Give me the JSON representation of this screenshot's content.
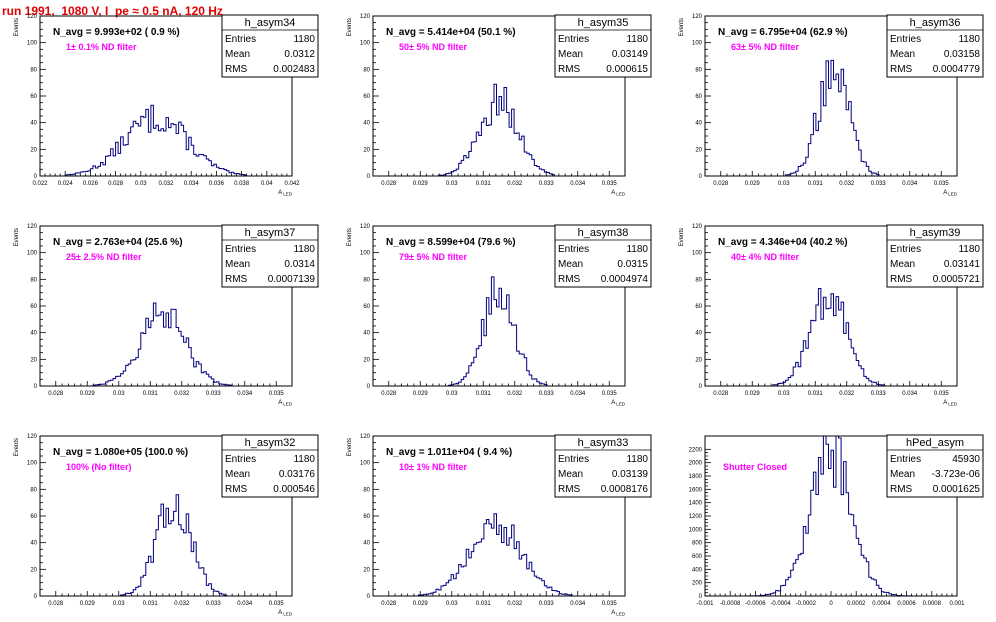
{
  "canvas_title": "run 1991,  1080 V, I_pe ≈ 0.5 nA, 120 Hz",
  "colors": {
    "histogram": "#000080",
    "title": "#e00000",
    "filter_label": "#ff00ff"
  },
  "stat_labels": {
    "entries": "Entries",
    "mean": "Mean",
    "rms": "RMS"
  },
  "chart_data": [
    {
      "type": "bar",
      "name": "h_asym34",
      "annotation": "N_avg = 9.993e+02 ( 0.9 %)",
      "filter": "1± 0.1% ND filter",
      "stats": {
        "entries": "1180",
        "mean": "0.0312",
        "rms": "0.002483"
      },
      "ylabel": "Events",
      "xlabel": "A_LED",
      "xlim": [
        0.022,
        0.042
      ],
      "ylim": [
        0,
        120
      ],
      "xticks": [
        "0.022",
        "0.024",
        "0.026",
        "0.028",
        "0.03",
        "0.032",
        "0.034",
        "0.036",
        "0.038",
        "0.04",
        "0.042"
      ],
      "yticks": [
        "0",
        "20",
        "40",
        "60",
        "80",
        "100",
        "120"
      ],
      "mean": 0.0312,
      "sigma": 0.0025,
      "peak": 45,
      "entries": 1180
    },
    {
      "type": "bar",
      "name": "h_asym35",
      "annotation": "N_avg = 5.414e+04 (50.1 %)",
      "filter": "50± 5% ND filter",
      "stats": {
        "entries": "1180",
        "mean": "0.03149",
        "rms": "0.000615"
      },
      "ylabel": "Events",
      "xlabel": "A_LED",
      "xlim": [
        0.0275,
        0.0355
      ],
      "ylim": [
        0,
        120
      ],
      "xticks": [
        "0.028",
        "0.029",
        "0.03",
        "0.031",
        "0.032",
        "0.033",
        "0.034",
        "0.035"
      ],
      "yticks": [
        "0",
        "20",
        "40",
        "60",
        "80",
        "100",
        "120"
      ],
      "mean": 0.03149,
      "sigma": 0.000615,
      "peak": 58,
      "entries": 1180
    },
    {
      "type": "bar",
      "name": "h_asym36",
      "annotation": "N_avg = 6.795e+04 (62.9 %)",
      "filter": "63± 5% ND filter",
      "stats": {
        "entries": "1180",
        "mean": "0.03158",
        "rms": "0.0004779"
      },
      "ylabel": "Events",
      "xlabel": "A_LED",
      "xlim": [
        0.0275,
        0.0355
      ],
      "ylim": [
        0,
        120
      ],
      "xticks": [
        "0.028",
        "0.029",
        "0.03",
        "0.031",
        "0.032",
        "0.033",
        "0.034",
        "0.035"
      ],
      "yticks": [
        "0",
        "20",
        "40",
        "60",
        "80",
        "100",
        "120"
      ],
      "mean": 0.03158,
      "sigma": 0.000478,
      "peak": 85,
      "entries": 1180
    },
    {
      "type": "bar",
      "name": "h_asym37",
      "annotation": "N_avg = 2.763e+04 (25.6 %)",
      "filter": "25± 2.5% ND filter",
      "stats": {
        "entries": "1180",
        "mean": "0.0314",
        "rms": "0.0007139"
      },
      "ylabel": "Events",
      "xlabel": "A_LED",
      "xlim": [
        0.0275,
        0.0355
      ],
      "ylim": [
        0,
        120
      ],
      "xticks": [
        "0.028",
        "0.029",
        "0.03",
        "0.031",
        "0.032",
        "0.033",
        "0.034",
        "0.035"
      ],
      "yticks": [
        "0",
        "20",
        "40",
        "60",
        "80",
        "100",
        "120"
      ],
      "mean": 0.0314,
      "sigma": 0.000714,
      "peak": 55,
      "entries": 1180
    },
    {
      "type": "bar",
      "name": "h_asym38",
      "annotation": "N_avg = 8.599e+04 (79.6 %)",
      "filter": "79± 5% ND filter",
      "stats": {
        "entries": "1180",
        "mean": "0.0315",
        "rms": "0.0004974"
      },
      "ylabel": "Events",
      "xlabel": "A_LED",
      "xlim": [
        0.0275,
        0.0355
      ],
      "ylim": [
        0,
        120
      ],
      "xticks": [
        "0.028",
        "0.029",
        "0.03",
        "0.031",
        "0.032",
        "0.033",
        "0.034",
        "0.035"
      ],
      "yticks": [
        "0",
        "20",
        "40",
        "60",
        "80",
        "100",
        "120"
      ],
      "mean": 0.0315,
      "sigma": 0.000497,
      "peak": 73,
      "entries": 1180
    },
    {
      "type": "bar",
      "name": "h_asym39",
      "annotation": "N_avg = 4.346e+04 (40.2 %)",
      "filter": "40± 4% ND filter",
      "stats": {
        "entries": "1180",
        "mean": "0.03141",
        "rms": "0.0005721"
      },
      "ylabel": "Events",
      "xlabel": "A_LED",
      "xlim": [
        0.0275,
        0.0355
      ],
      "ylim": [
        0,
        120
      ],
      "xticks": [
        "0.028",
        "0.029",
        "0.03",
        "0.031",
        "0.032",
        "0.033",
        "0.034",
        "0.035"
      ],
      "yticks": [
        "0",
        "20",
        "40",
        "60",
        "80",
        "100",
        "120"
      ],
      "mean": 0.03141,
      "sigma": 0.000572,
      "peak": 71,
      "entries": 1180
    },
    {
      "type": "bar",
      "name": "h_asym32",
      "annotation": "N_avg = 1.080e+05 (100.0 %)",
      "filter": "100% (No filter)",
      "stats": {
        "entries": "1180",
        "mean": "0.03176",
        "rms": "0.000546"
      },
      "ylabel": "Events",
      "xlabel": "A_LED",
      "xlim": [
        0.0275,
        0.0355
      ],
      "ylim": [
        0,
        120
      ],
      "xticks": [
        "0.028",
        "0.029",
        "0.03",
        "0.031",
        "0.032",
        "0.033",
        "0.034",
        "0.035"
      ],
      "yticks": [
        "0",
        "20",
        "40",
        "60",
        "80",
        "100",
        "120"
      ],
      "mean": 0.03176,
      "sigma": 0.000546,
      "peak": 72,
      "entries": 1180
    },
    {
      "type": "bar",
      "name": "h_asym33",
      "annotation": "N_avg = 1.011e+04 ( 9.4 %)",
      "filter": "10± 1% ND filter",
      "stats": {
        "entries": "1180",
        "mean": "0.03139",
        "rms": "0.0008176"
      },
      "ylabel": "Events",
      "xlabel": "A_LED",
      "xlim": [
        0.0275,
        0.0355
      ],
      "ylim": [
        0,
        120
      ],
      "xticks": [
        "0.028",
        "0.029",
        "0.03",
        "0.031",
        "0.032",
        "0.033",
        "0.034",
        "0.035"
      ],
      "yticks": [
        "0",
        "20",
        "40",
        "60",
        "80",
        "100",
        "120"
      ],
      "mean": 0.03139,
      "sigma": 0.000818,
      "peak": 55,
      "entries": 1180
    },
    {
      "type": "bar",
      "name": "hPed_asym",
      "annotation": "",
      "filter": "Shutter Closed",
      "stats": {
        "entries": "45930",
        "mean": "-3.723e-06",
        "rms": "0.0001625"
      },
      "ylabel": "",
      "xlabel": "",
      "xlim": [
        -0.001,
        0.001
      ],
      "ylim": [
        0,
        2400
      ],
      "xticks": [
        "-0.001",
        "-0.0008",
        "-0.0006",
        "-0.0004",
        "-0.0002",
        "0",
        "0.0002",
        "0.0004",
        "0.0006",
        "0.0008",
        "0.001"
      ],
      "yticks": [
        "0",
        "200",
        "400",
        "600",
        "800",
        "1000",
        "1200",
        "1400",
        "1600",
        "1800",
        "2000",
        "2200"
      ],
      "mean": -3.7e-06,
      "sigma": 0.0001625,
      "peak": 2250,
      "entries": 45930
    }
  ]
}
